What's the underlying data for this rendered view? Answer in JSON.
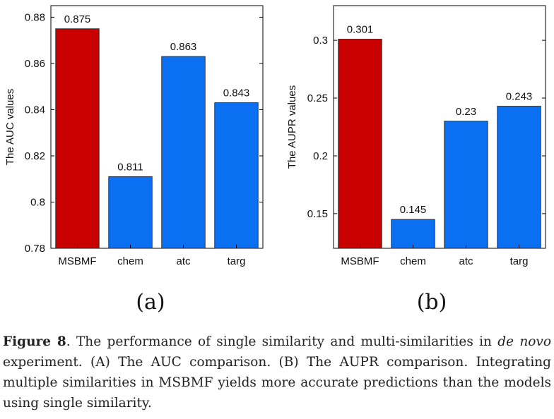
{
  "chart_data": [
    {
      "type": "bar",
      "panel_label": "(a)",
      "ylabel": "The AUC values",
      "categories": [
        "MSBMF",
        "chem",
        "atc",
        "targ"
      ],
      "values": [
        0.875,
        0.811,
        0.863,
        0.843
      ],
      "value_labels": [
        "0.875",
        "0.811",
        "0.863",
        "0.843"
      ],
      "bar_colors": [
        "#c80000",
        "#0a6ff0",
        "#0a6ff0",
        "#0a6ff0"
      ],
      "ylim": [
        0.78,
        0.885
      ],
      "yticks": [
        0.78,
        0.8,
        0.82,
        0.84,
        0.86,
        0.88
      ],
      "ytick_labels": [
        "0.78",
        "0.8",
        "0.82",
        "0.84",
        "0.86",
        "0.88"
      ],
      "grid": false,
      "legend": false
    },
    {
      "type": "bar",
      "panel_label": "(b)",
      "ylabel": "The AUPR values",
      "categories": [
        "MSBMF",
        "chem",
        "atc",
        "targ"
      ],
      "values": [
        0.301,
        0.145,
        0.23,
        0.243
      ],
      "value_labels": [
        "0.301",
        "0.145",
        "0.23",
        "0.243"
      ],
      "bar_colors": [
        "#c80000",
        "#0a6ff0",
        "#0a6ff0",
        "#0a6ff0"
      ],
      "ylim": [
        0.12,
        0.33
      ],
      "yticks": [
        0.15,
        0.2,
        0.25,
        0.3
      ],
      "ytick_labels": [
        "0.15",
        "0.2",
        "0.25",
        "0.3"
      ],
      "grid": false,
      "legend": false
    }
  ],
  "caption": {
    "label": "Figure 8",
    "text_before": ".  The performance of single similarity and multi-similarities in ",
    "italic": "de novo",
    "text_after": " experiment. (A) The AUC comparison. (B) The AUPR comparison. Integrating multiple similarities in MSBMF yields more accurate predictions than the models using single similarity."
  }
}
